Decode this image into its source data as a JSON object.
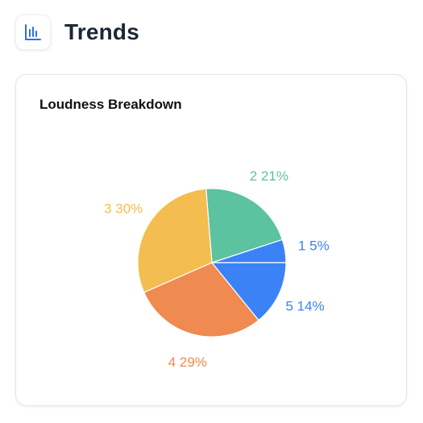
{
  "header": {
    "title": "Trends",
    "icon": "bar-chart-icon",
    "icon_color": "#2f6fe0"
  },
  "card": {
    "title": "Loudness Breakdown"
  },
  "chart_data": {
    "type": "pie",
    "title": "Loudness Breakdown",
    "start_angle_deg": 0,
    "direction": "counterclockwise",
    "slices": [
      {
        "label": "1",
        "value": 5,
        "display": "1 5%",
        "color": "#3b82f6"
      },
      {
        "label": "2",
        "value": 21,
        "display": "2 21%",
        "color": "#5cc2a0"
      },
      {
        "label": "3",
        "value": 30,
        "display": "3 30%",
        "color": "#f4bd4f"
      },
      {
        "label": "4",
        "value": 29,
        "display": "4 29%",
        "color": "#ef8a50"
      },
      {
        "label": "5",
        "value": 14,
        "display": "5 14%",
        "color": "#3b82f6"
      }
    ]
  }
}
